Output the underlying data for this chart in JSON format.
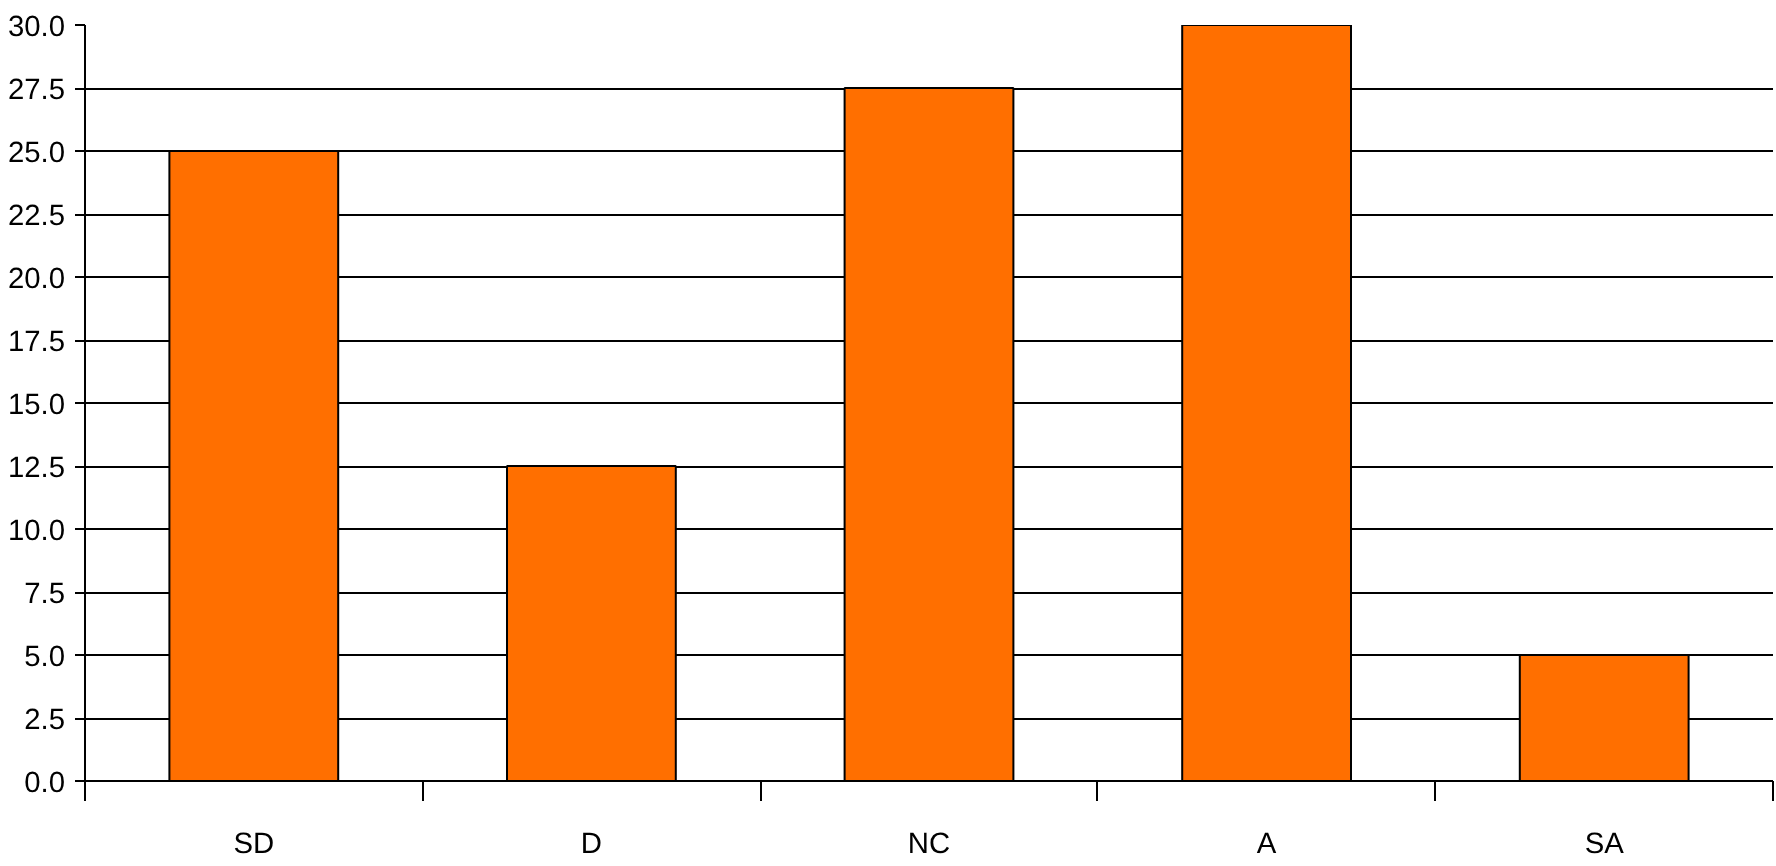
{
  "chart_data": {
    "type": "bar",
    "categories": [
      "SD",
      "D",
      "NC",
      "A",
      "SA"
    ],
    "values": [
      25,
      12.5,
      27.5,
      30,
      5
    ],
    "color": "#ff6f00",
    "ylim": [
      0,
      30
    ],
    "yticks": [
      {
        "value": 0,
        "label": "0.0"
      },
      {
        "value": 2.5,
        "label": "2.5"
      },
      {
        "value": 5,
        "label": "5.0"
      },
      {
        "value": 7.5,
        "label": "7.5"
      },
      {
        "value": 10,
        "label": "10.0"
      },
      {
        "value": 12.5,
        "label": "12.5"
      },
      {
        "value": 15,
        "label": "15.0"
      },
      {
        "value": 17.5,
        "label": "17.5"
      },
      {
        "value": 20,
        "label": "20.0"
      },
      {
        "value": 22.5,
        "label": "22.5"
      },
      {
        "value": 25,
        "label": "25.0"
      },
      {
        "value": 27.5,
        "label": "27.5"
      },
      {
        "value": 30,
        "label": "30.0"
      }
    ],
    "grid": "y"
  }
}
